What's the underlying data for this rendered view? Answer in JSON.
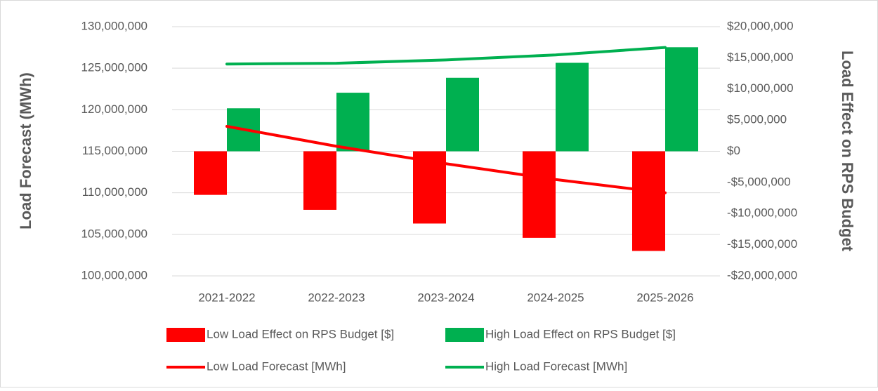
{
  "chart_data": {
    "type": "combo",
    "categories": [
      "2021-2022",
      "2022-2023",
      "2023-2024",
      "2024-2025",
      "2025-2026"
    ],
    "y_label": "Load Forecast (MWh)",
    "y2_label": "Load Effect on RPS Budget",
    "ylim": [
      100000000,
      130000000
    ],
    "yticks": [
      {
        "value": 100000000,
        "label": "100,000,000"
      },
      {
        "value": 105000000,
        "label": "105,000,000"
      },
      {
        "value": 110000000,
        "label": "110,000,000"
      },
      {
        "value": 115000000,
        "label": "115,000,000"
      },
      {
        "value": 120000000,
        "label": "120,000,000"
      },
      {
        "value": 125000000,
        "label": "125,000,000"
      },
      {
        "value": 130000000,
        "label": "130,000,000"
      }
    ],
    "y2lim": [
      -20000000,
      20000000
    ],
    "y2ticks": [
      {
        "value": -20000000,
        "label": "-$20,000,000"
      },
      {
        "value": -15000000,
        "label": "-$15,000,000"
      },
      {
        "value": -10000000,
        "label": "-$10,000,000"
      },
      {
        "value": -5000000,
        "label": "-$5,000,000"
      },
      {
        "value": 0,
        "label": "$0"
      },
      {
        "value": 5000000,
        "label": "$5,000,000"
      },
      {
        "value": 10000000,
        "label": "$10,000,000"
      },
      {
        "value": 15000000,
        "label": "$15,000,000"
      },
      {
        "value": 20000000,
        "label": "$20,000,000"
      }
    ],
    "grid": true,
    "series": [
      {
        "name": "Low Load Effect on RPS Budget [$]",
        "type": "bar",
        "axis": "y2",
        "color": "#ff0000",
        "values": [
          -7000000,
          -9400000,
          -11600000,
          -13900000,
          -16000000
        ]
      },
      {
        "name": "High Load Effect on RPS Budget [$]",
        "type": "bar",
        "axis": "y2",
        "color": "#00b050",
        "values": [
          6900000,
          9400000,
          11800000,
          14200000,
          16700000
        ]
      },
      {
        "name": "Low Load Forecast [MWh]",
        "type": "line",
        "color": "#ff0000",
        "values": [
          118000000,
          115600000,
          113500000,
          111600000,
          110000000
        ]
      },
      {
        "name": "High Load Forecast [MWh]",
        "type": "line",
        "color": "#00b050",
        "values": [
          125500000,
          125600000,
          126000000,
          126600000,
          127500000
        ]
      }
    ]
  }
}
